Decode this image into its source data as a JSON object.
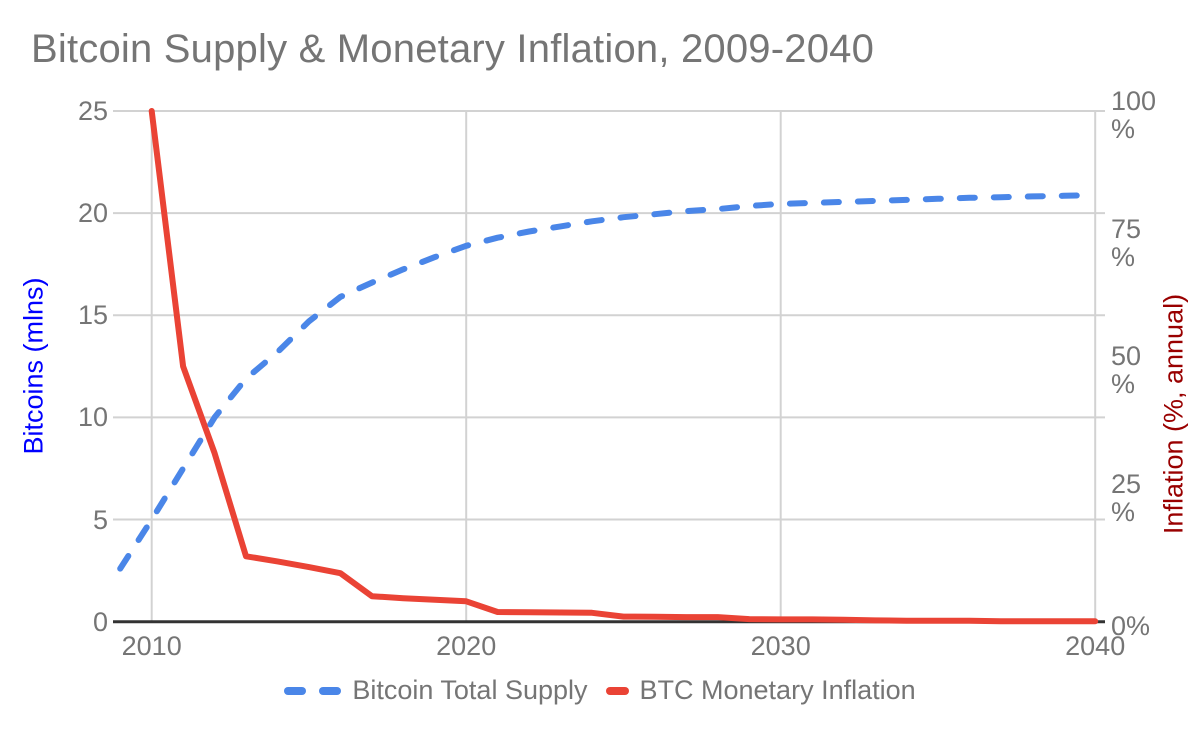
{
  "chart_data": {
    "type": "line",
    "title": "Bitcoin Supply & Monetary Inflation, 2009-2040",
    "title_color": "#757575",
    "text_color": "#757575",
    "gridline_color": "#d2d2d2",
    "baseline_color": "#333333",
    "grid": true,
    "legend_position": "bottom",
    "x": [
      2009,
      2010,
      2011,
      2012,
      2013,
      2014,
      2015,
      2016,
      2017,
      2018,
      2019,
      2020,
      2021,
      2022,
      2023,
      2024,
      2025,
      2026,
      2027,
      2028,
      2029,
      2030,
      2031,
      2032,
      2033,
      2034,
      2035,
      2036,
      2037,
      2038,
      2039,
      2040
    ],
    "series": [
      {
        "name": "Bitcoin Total Supply",
        "axis": "left",
        "color": "#4a86e8",
        "style": "dashed",
        "values": [
          2.6,
          5.0,
          7.5,
          10.0,
          11.9,
          13.2,
          14.7,
          15.9,
          16.6,
          17.25,
          17.85,
          18.4,
          18.8,
          19.1,
          19.35,
          19.6,
          19.8,
          19.95,
          20.1,
          20.2,
          20.35,
          20.45,
          20.5,
          20.55,
          20.6,
          20.65,
          20.7,
          20.75,
          20.78,
          20.82,
          20.85,
          20.88
        ]
      },
      {
        "name": "BTC Monetary Inflation",
        "axis": "right",
        "color": "#ea4335",
        "style": "solid",
        "values": [
          null,
          100,
          50,
          33,
          12.8,
          11.8,
          10.7,
          9.5,
          5.0,
          4.6,
          4.3,
          4.0,
          1.9,
          1.85,
          1.8,
          1.75,
          1.0,
          0.95,
          0.9,
          0.9,
          0.5,
          0.45,
          0.45,
          0.4,
          0.25,
          0.2,
          0.2,
          0.2,
          0.1,
          0.1,
          0.1,
          0.1
        ]
      }
    ],
    "axes": {
      "left": {
        "title": "Bitcoins (mlns)",
        "title_color": "#0000ff",
        "min": 0,
        "max": 25,
        "ticks": [
          0,
          5,
          10,
          15,
          20,
          25
        ],
        "tick_labels": [
          "0",
          "5",
          "10",
          "15",
          "20",
          "25"
        ]
      },
      "right": {
        "title": "Inflation (%, annual)",
        "title_color": "#990000",
        "min": 0,
        "max": 100,
        "ticks": [
          0,
          25,
          50,
          75,
          100
        ],
        "tick_labels": [
          "0%",
          "25\n%",
          "50\n%",
          "75\n%",
          "100\n%"
        ]
      },
      "x": {
        "min": 2009,
        "max": 2040,
        "ticks": [
          2010,
          2020,
          2030,
          2040
        ],
        "tick_labels": [
          "2010",
          "2020",
          "2030",
          "2040"
        ]
      }
    }
  }
}
